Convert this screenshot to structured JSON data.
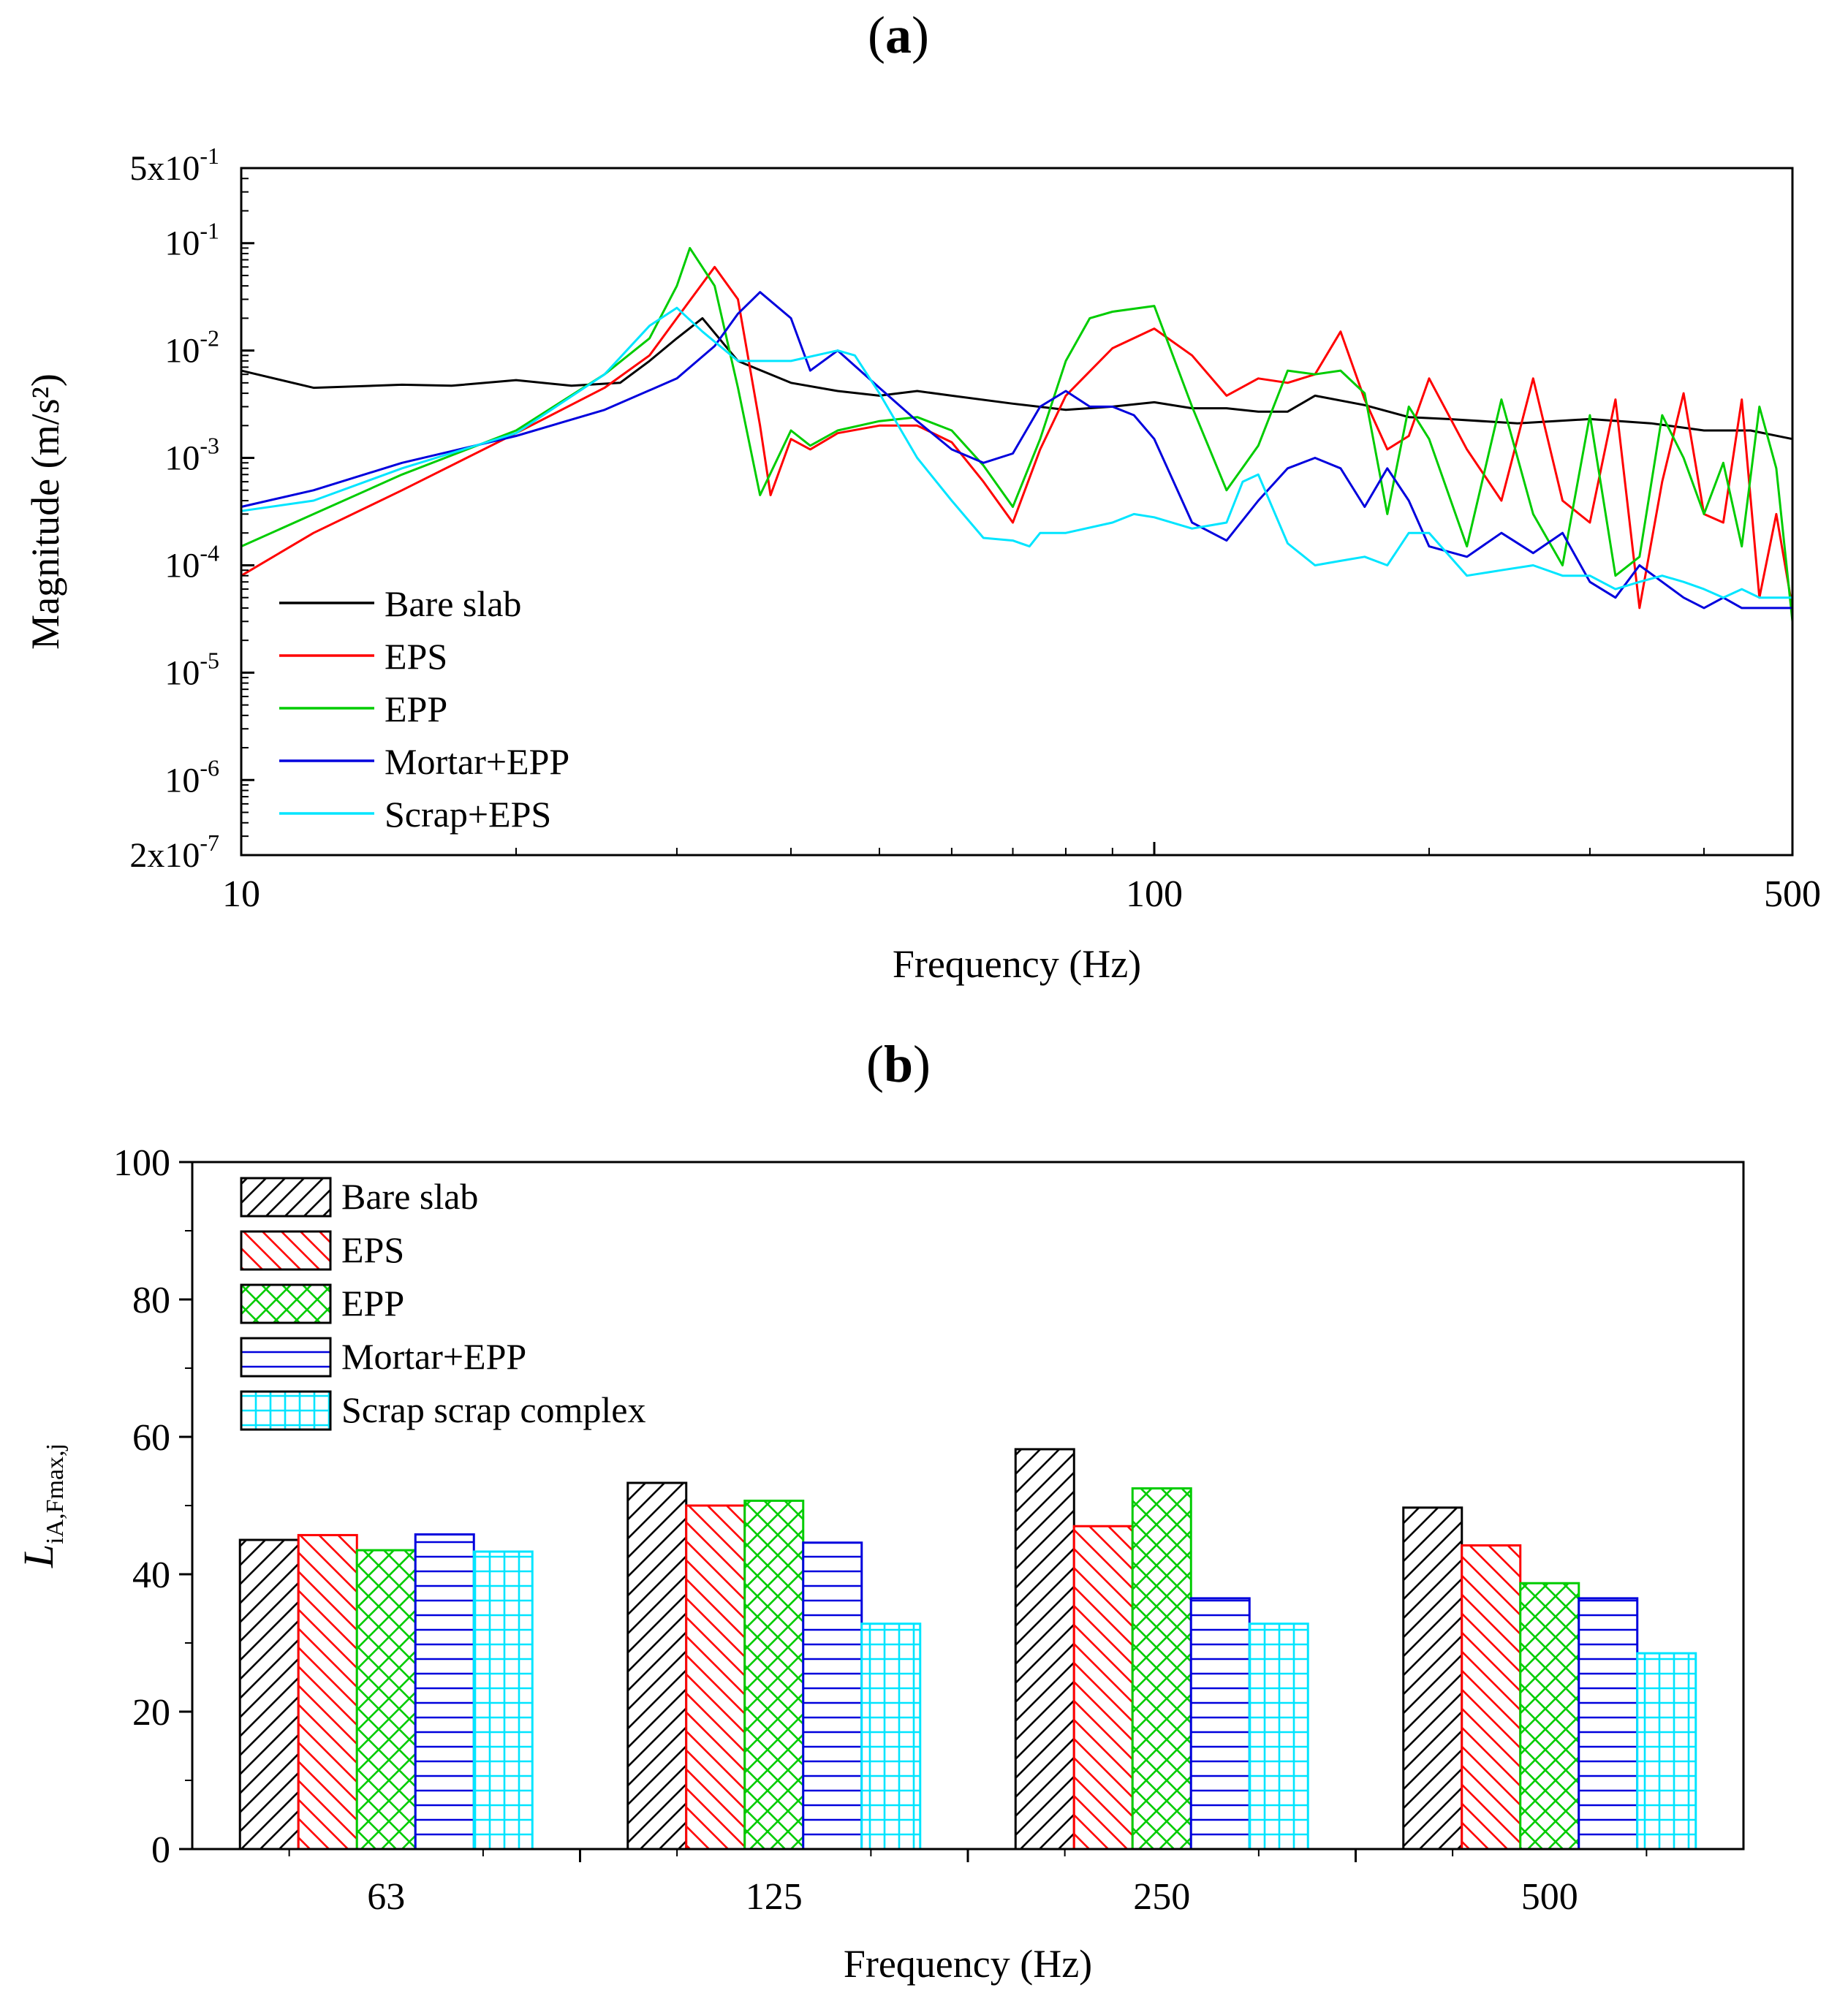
{
  "chart_data": [
    {
      "panel_label": "(a)",
      "panel_letter": "a",
      "type": "line",
      "xscale": "log",
      "yscale": "log",
      "xlabel": "Frequency (Hz)",
      "ylabel": "Magnitude (m/s²)",
      "xlim": [
        10,
        500
      ],
      "ylim": [
        2e-07,
        0.5
      ],
      "xticks": [
        {
          "value": 10,
          "label": "10"
        },
        {
          "value": 100,
          "label": "100"
        },
        {
          "value": 500,
          "label": "500"
        }
      ],
      "yticks": [
        {
          "value": 0.5,
          "mant": "5x10",
          "exp": "-1"
        },
        {
          "value": 0.1,
          "mant": "10",
          "exp": "-1"
        },
        {
          "value": 0.01,
          "mant": "10",
          "exp": "-2"
        },
        {
          "value": 0.001,
          "mant": "10",
          "exp": "-3"
        },
        {
          "value": 0.0001,
          "mant": "10",
          "exp": "-4"
        },
        {
          "value": 1e-05,
          "mant": "10",
          "exp": "-5"
        },
        {
          "value": 1e-06,
          "mant": "10",
          "exp": "-6"
        },
        {
          "value": 2e-07,
          "mant": "2x10",
          "exp": "-7"
        }
      ],
      "legend_position": "bottom-left",
      "series": [
        {
          "name": "Bare slab",
          "color": "#000000",
          "x": [
            10,
            12,
            15,
            17,
            20,
            23,
            26,
            28,
            30,
            32,
            35,
            40,
            45,
            50,
            55,
            60,
            70,
            80,
            90,
            100,
            110,
            120,
            130,
            140,
            150,
            170,
            190,
            210,
            250,
            300,
            350,
            400,
            450,
            500
          ],
          "y": [
            0.0065,
            0.0045,
            0.0048,
            0.0047,
            0.0053,
            0.0047,
            0.005,
            0.008,
            0.013,
            0.02,
            0.008,
            0.005,
            0.0042,
            0.0038,
            0.0042,
            0.0038,
            0.0032,
            0.0028,
            0.003,
            0.0033,
            0.0029,
            0.0029,
            0.0027,
            0.0027,
            0.0038,
            0.0031,
            0.0024,
            0.0023,
            0.0021,
            0.0023,
            0.0021,
            0.0018,
            0.0018,
            0.0015
          ]
        },
        {
          "name": "EPS",
          "color": "#ff0000",
          "x": [
            10,
            12,
            15,
            20,
            25,
            28,
            30,
            33,
            35,
            37,
            38,
            40,
            42,
            45,
            50,
            55,
            60,
            65,
            70,
            75,
            80,
            90,
            100,
            110,
            120,
            130,
            140,
            150,
            160,
            170,
            180,
            190,
            200,
            220,
            240,
            260,
            280,
            300,
            320,
            340,
            360,
            380,
            400,
            420,
            440,
            460,
            480,
            500
          ],
          "y": [
            8e-05,
            0.0002,
            0.0005,
            0.0017,
            0.0045,
            0.009,
            0.02,
            0.06,
            0.03,
            0.002,
            0.00045,
            0.0015,
            0.0012,
            0.0017,
            0.002,
            0.002,
            0.0014,
            0.0006,
            0.00025,
            0.0012,
            0.0038,
            0.0105,
            0.016,
            0.009,
            0.0038,
            0.0055,
            0.005,
            0.006,
            0.015,
            0.0035,
            0.0012,
            0.0016,
            0.0055,
            0.0012,
            0.0004,
            0.0055,
            0.0004,
            0.00025,
            0.0035,
            4e-05,
            0.0006,
            0.004,
            0.0003,
            0.00025,
            0.0035,
            5e-05,
            0.0003,
            4e-05
          ]
        },
        {
          "name": "EPP",
          "color": "#00cc00",
          "x": [
            10,
            12,
            15,
            20,
            25,
            28,
            30,
            31,
            33,
            35,
            37,
            40,
            42,
            45,
            50,
            55,
            60,
            65,
            70,
            75,
            80,
            85,
            90,
            100,
            110,
            120,
            130,
            140,
            150,
            160,
            170,
            180,
            190,
            200,
            220,
            240,
            260,
            280,
            300,
            320,
            340,
            360,
            380,
            400,
            420,
            440,
            460,
            480,
            500
          ],
          "y": [
            0.00015,
            0.0003,
            0.0007,
            0.0018,
            0.006,
            0.013,
            0.04,
            0.09,
            0.04,
            0.0045,
            0.00045,
            0.0018,
            0.0013,
            0.0018,
            0.0022,
            0.0024,
            0.0018,
            0.00085,
            0.00035,
            0.0015,
            0.008,
            0.02,
            0.023,
            0.026,
            0.003,
            0.0005,
            0.0013,
            0.0065,
            0.006,
            0.0065,
            0.004,
            0.0003,
            0.003,
            0.0015,
            0.00015,
            0.0035,
            0.0003,
            0.0001,
            0.0025,
            8e-05,
            0.00012,
            0.0025,
            0.001,
            0.0003,
            0.0009,
            0.00015,
            0.003,
            0.0008,
            3e-05
          ]
        },
        {
          "name": "Mortar+EPP",
          "color": "#0000dd",
          "x": [
            10,
            12,
            15,
            20,
            25,
            30,
            33,
            35,
            37,
            40,
            42,
            45,
            50,
            55,
            60,
            65,
            70,
            75,
            80,
            85,
            90,
            95,
            100,
            110,
            120,
            130,
            140,
            150,
            160,
            170,
            180,
            190,
            200,
            220,
            240,
            260,
            280,
            300,
            320,
            340,
            360,
            380,
            400,
            420,
            440,
            460,
            480,
            500
          ],
          "y": [
            0.00035,
            0.0005,
            0.0009,
            0.0016,
            0.0028,
            0.0055,
            0.011,
            0.022,
            0.035,
            0.02,
            0.0065,
            0.01,
            0.0045,
            0.0022,
            0.0012,
            0.0009,
            0.0011,
            0.003,
            0.0042,
            0.003,
            0.003,
            0.0025,
            0.0015,
            0.00025,
            0.00017,
            0.0004,
            0.0008,
            0.001,
            0.0008,
            0.00035,
            0.0008,
            0.0004,
            0.00015,
            0.00012,
            0.0002,
            0.00013,
            0.0002,
            7e-05,
            5e-05,
            0.0001,
            7e-05,
            5e-05,
            4e-05,
            5e-05,
            4e-05,
            4e-05,
            4e-05,
            4e-05
          ]
        },
        {
          "name": "Scrap+EPS",
          "color": "#00e5ff",
          "x": [
            10,
            12,
            15,
            20,
            25,
            28,
            30,
            32,
            35,
            40,
            45,
            47,
            50,
            55,
            60,
            65,
            70,
            73,
            75,
            80,
            90,
            95,
            100,
            110,
            120,
            125,
            130,
            140,
            150,
            160,
            170,
            180,
            190,
            200,
            220,
            240,
            260,
            280,
            300,
            320,
            340,
            360,
            380,
            400,
            420,
            440,
            460,
            480,
            500
          ],
          "y": [
            0.00032,
            0.0004,
            0.0008,
            0.0017,
            0.006,
            0.017,
            0.025,
            0.015,
            0.008,
            0.008,
            0.01,
            0.009,
            0.004,
            0.001,
            0.0004,
            0.00018,
            0.00017,
            0.00015,
            0.0002,
            0.0002,
            0.00025,
            0.0003,
            0.00028,
            0.00022,
            0.00025,
            0.0006,
            0.0007,
            0.00016,
            0.0001,
            0.00011,
            0.00012,
            0.0001,
            0.0002,
            0.0002,
            8e-05,
            9e-05,
            0.0001,
            8e-05,
            8e-05,
            6e-05,
            7e-05,
            8e-05,
            7e-05,
            6e-05,
            5e-05,
            6e-05,
            5e-05,
            5e-05,
            5e-05
          ]
        }
      ]
    },
    {
      "panel_label": "(b)",
      "panel_letter": "b",
      "type": "bar",
      "xlabel": "Frequency (Hz)",
      "ylabel_main": "L",
      "ylabel_sub": "iA,Fmax,j",
      "categories": [
        "63",
        "125",
        "250",
        "500"
      ],
      "ylim": [
        0,
        100
      ],
      "yticks": [
        0,
        20,
        40,
        60,
        80,
        100
      ],
      "legend_position": "top-left",
      "series": [
        {
          "name": "Bare slab",
          "color": "#000000",
          "pattern": "hatch-forward",
          "values": [
            45,
            53.3,
            58.2,
            49.7
          ]
        },
        {
          "name": "EPS",
          "color": "#ff0000",
          "pattern": "hatch-backward",
          "values": [
            45.7,
            50,
            47,
            44.2
          ]
        },
        {
          "name": "EPP",
          "color": "#00cc00",
          "pattern": "crosshatch",
          "values": [
            43.5,
            50.7,
            52.5,
            38.7
          ]
        },
        {
          "name": "Mortar+EPP",
          "color": "#0000dd",
          "pattern": "horizontal",
          "values": [
            45.8,
            44.6,
            36.5,
            36.5
          ]
        },
        {
          "name": "Scrap scrap complex",
          "color": "#00e5ff",
          "pattern": "grid",
          "values": [
            43.3,
            32.8,
            32.8,
            28.5
          ]
        }
      ]
    }
  ]
}
